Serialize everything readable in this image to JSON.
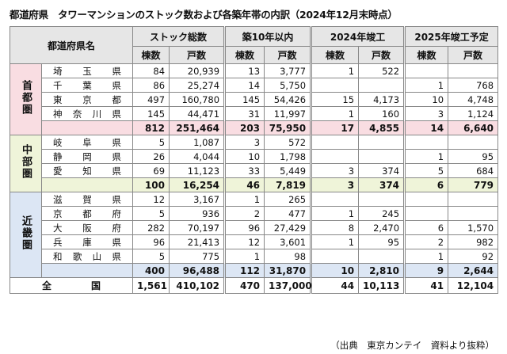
{
  "title": "都道府県　タワーマンションのストック数および各築年帯の内訳（2024年12月末時点）",
  "table": {
    "header": {
      "name": "都道府県名",
      "groups": [
        "ストック総数",
        "築10年以内",
        "2024年竣工",
        "2025年竣工予定"
      ],
      "sub": [
        "棟数",
        "戸数"
      ]
    },
    "regions": [
      {
        "name": "首都圏",
        "rows": [
          {
            "name": "埼玉県",
            "cells": [
              "84",
              "20,939",
              "13",
              "3,777",
              "1",
              "522",
              null,
              null
            ]
          },
          {
            "name": "千葉県",
            "cells": [
              "86",
              "25,274",
              "14",
              "5,750",
              null,
              null,
              "1",
              "768"
            ]
          },
          {
            "name": "東京都",
            "cells": [
              "497",
              "160,780",
              "145",
              "54,426",
              "15",
              "4,173",
              "10",
              "4,748"
            ]
          },
          {
            "name": "神奈川県",
            "cells": [
              "145",
              "44,471",
              "31",
              "11,997",
              "1",
              "160",
              "3",
              "1,124"
            ]
          }
        ],
        "subtotal": [
          "812",
          "251,464",
          "203",
          "75,950",
          "17",
          "4,855",
          "14",
          "6,640"
        ]
      },
      {
        "name": "中部圏",
        "rows": [
          {
            "name": "岐阜県",
            "cells": [
              "5",
              "1,087",
              "3",
              "572",
              null,
              null,
              null,
              null
            ]
          },
          {
            "name": "静岡県",
            "cells": [
              "26",
              "4,044",
              "10",
              "1,798",
              null,
              null,
              "1",
              "95"
            ]
          },
          {
            "name": "愛知県",
            "cells": [
              "69",
              "11,123",
              "33",
              "5,449",
              "3",
              "374",
              "5",
              "684"
            ]
          }
        ],
        "subtotal": [
          "100",
          "16,254",
          "46",
          "7,819",
          "3",
          "374",
          "6",
          "779"
        ]
      },
      {
        "name": "近畿圏",
        "rows": [
          {
            "name": "滋賀県",
            "cells": [
              "12",
              "3,167",
              "1",
              "265",
              null,
              null,
              null,
              null
            ]
          },
          {
            "name": "京都府",
            "cells": [
              "5",
              "936",
              "2",
              "477",
              "1",
              "245",
              null,
              null
            ]
          },
          {
            "name": "大阪府",
            "cells": [
              "282",
              "70,197",
              "96",
              "27,429",
              "8",
              "2,470",
              "6",
              "1,570"
            ]
          },
          {
            "name": "兵庫県",
            "cells": [
              "96",
              "21,413",
              "12",
              "3,601",
              "1",
              "95",
              "2",
              "982"
            ]
          },
          {
            "name": "和歌山県",
            "cells": [
              "5",
              "775",
              "1",
              "98",
              null,
              null,
              "1",
              "92"
            ]
          }
        ],
        "subtotal": [
          "400",
          "96,488",
          "112",
          "31,870",
          "10",
          "2,810",
          "9",
          "2,644"
        ]
      }
    ],
    "total": {
      "label": "全国",
      "cells": [
        "1,561",
        "410,102",
        "470",
        "137,000",
        "44",
        "10,113",
        "41",
        "12,104"
      ]
    }
  },
  "source": "（出典　東京カンテイ　資料より抜粋）"
}
